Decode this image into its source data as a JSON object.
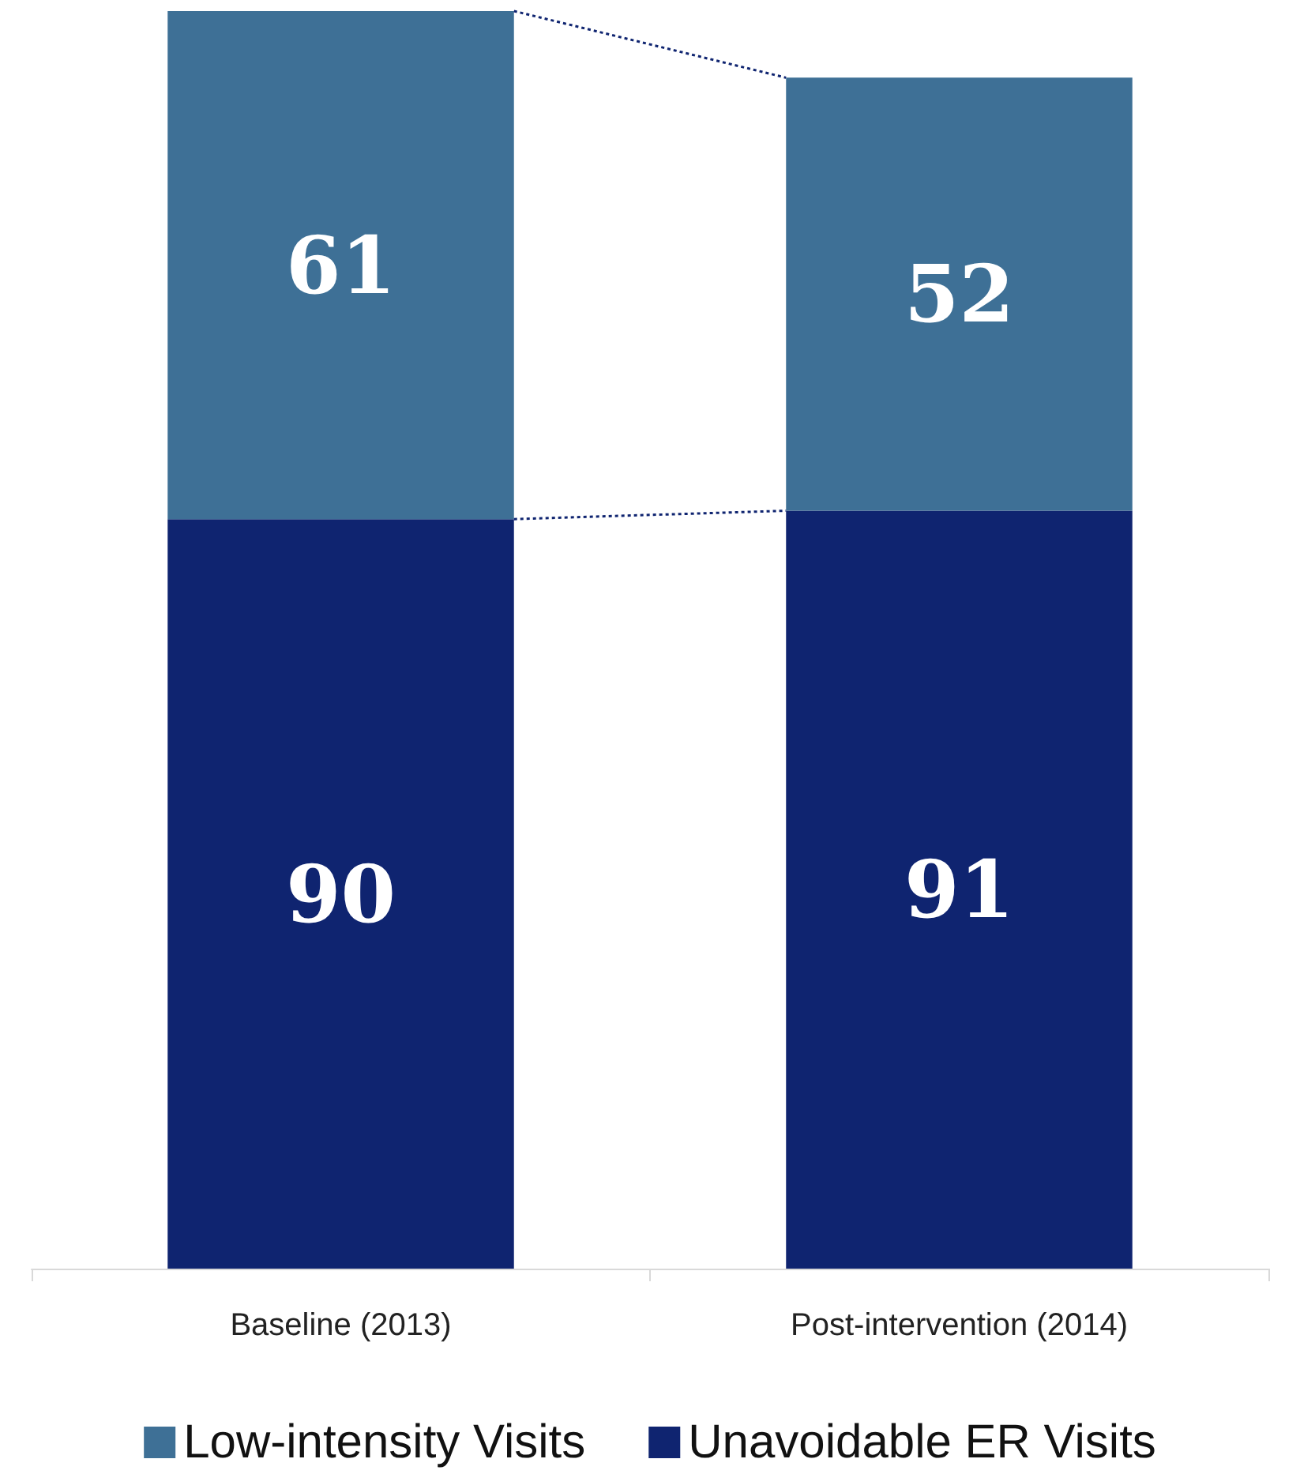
{
  "chart_data": {
    "type": "bar",
    "stacked": true,
    "categories": [
      "Baseline (2013)",
      "Post-intervention (2014)"
    ],
    "series": [
      {
        "name": "Unavoidable ER Visits",
        "color": "#0f2470",
        "values": [
          90,
          91
        ]
      },
      {
        "name": "Low-intensity Visits",
        "color": "#3e7096",
        "values": [
          61,
          52
        ]
      }
    ],
    "data_labels": true,
    "legend": "bottom",
    "grid": false
  }
}
